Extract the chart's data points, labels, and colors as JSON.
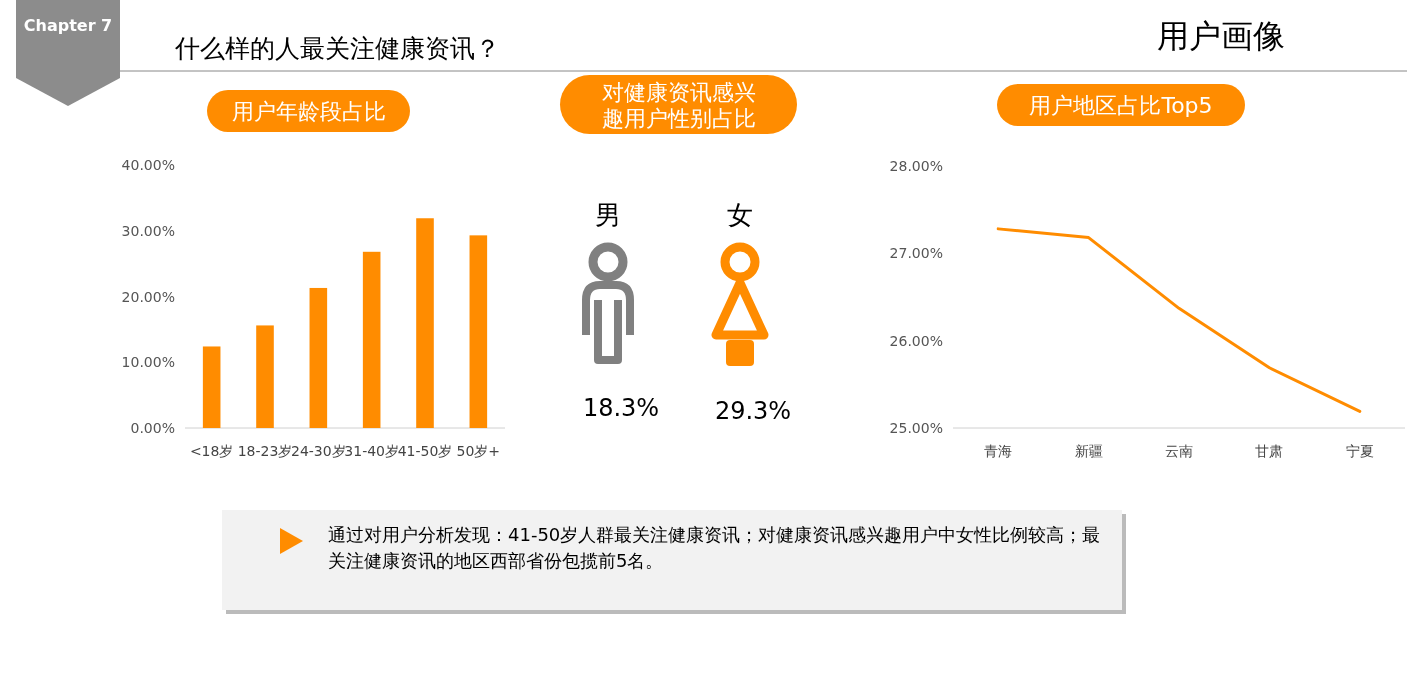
{
  "chart_data": [
    {
      "type": "other",
      "title": "什么样的人最关注健康资讯？",
      "annotations": [
        "Chapter 7",
        "用户画像",
        "通过对用户分析发现：41-50岁人群最关注健康资讯；对健康资讯感兴趣用户中女性比例较高；最关注健康资讯的地区西部省份包揽前5名。"
      ]
    },
    {
      "type": "bar",
      "title": "用户年龄段占比",
      "categories": [
        "<18岁",
        "18-23岁",
        "24-30岁",
        "31-40岁",
        "41-50岁",
        "50岁+"
      ],
      "values": [
        12.4,
        15.6,
        21.3,
        26.8,
        31.9,
        29.3
      ],
      "color": "#ff8c00",
      "ylim": [
        0,
        40
      ],
      "yticks": [
        {
          "value": 0,
          "label": "0.00%"
        },
        {
          "value": 10,
          "label": "10.00%"
        },
        {
          "value": 20,
          "label": "20.00%"
        },
        {
          "value": 30,
          "label": "30.00%"
        },
        {
          "value": 40,
          "label": "40.00%"
        }
      ],
      "grid": false
    },
    {
      "type": "other",
      "title": "对健康资讯感兴趣用户性别占比",
      "categories": [
        "男",
        "女"
      ],
      "value_labels": [
        "18.3%",
        "29.3%"
      ],
      "colors": [
        "#808080",
        "#ff8c00"
      ]
    },
    {
      "type": "line",
      "title": "用户地区占比Top5",
      "categories": [
        "青海",
        "新疆",
        "云南",
        "甘肃",
        "宁夏"
      ],
      "values": [
        27.28,
        27.18,
        26.37,
        25.69,
        25.19
      ],
      "color": "#ff8c00",
      "ylim": [
        25,
        28
      ],
      "yticks": [
        {
          "value": 25,
          "label": "25.00%"
        },
        {
          "value": 26,
          "label": "26.00%"
        },
        {
          "value": 27,
          "label": "27.00%"
        },
        {
          "value": 28,
          "label": "28.00%"
        }
      ],
      "grid": false,
      "marker": "none",
      "line_style": "solid"
    }
  ]
}
